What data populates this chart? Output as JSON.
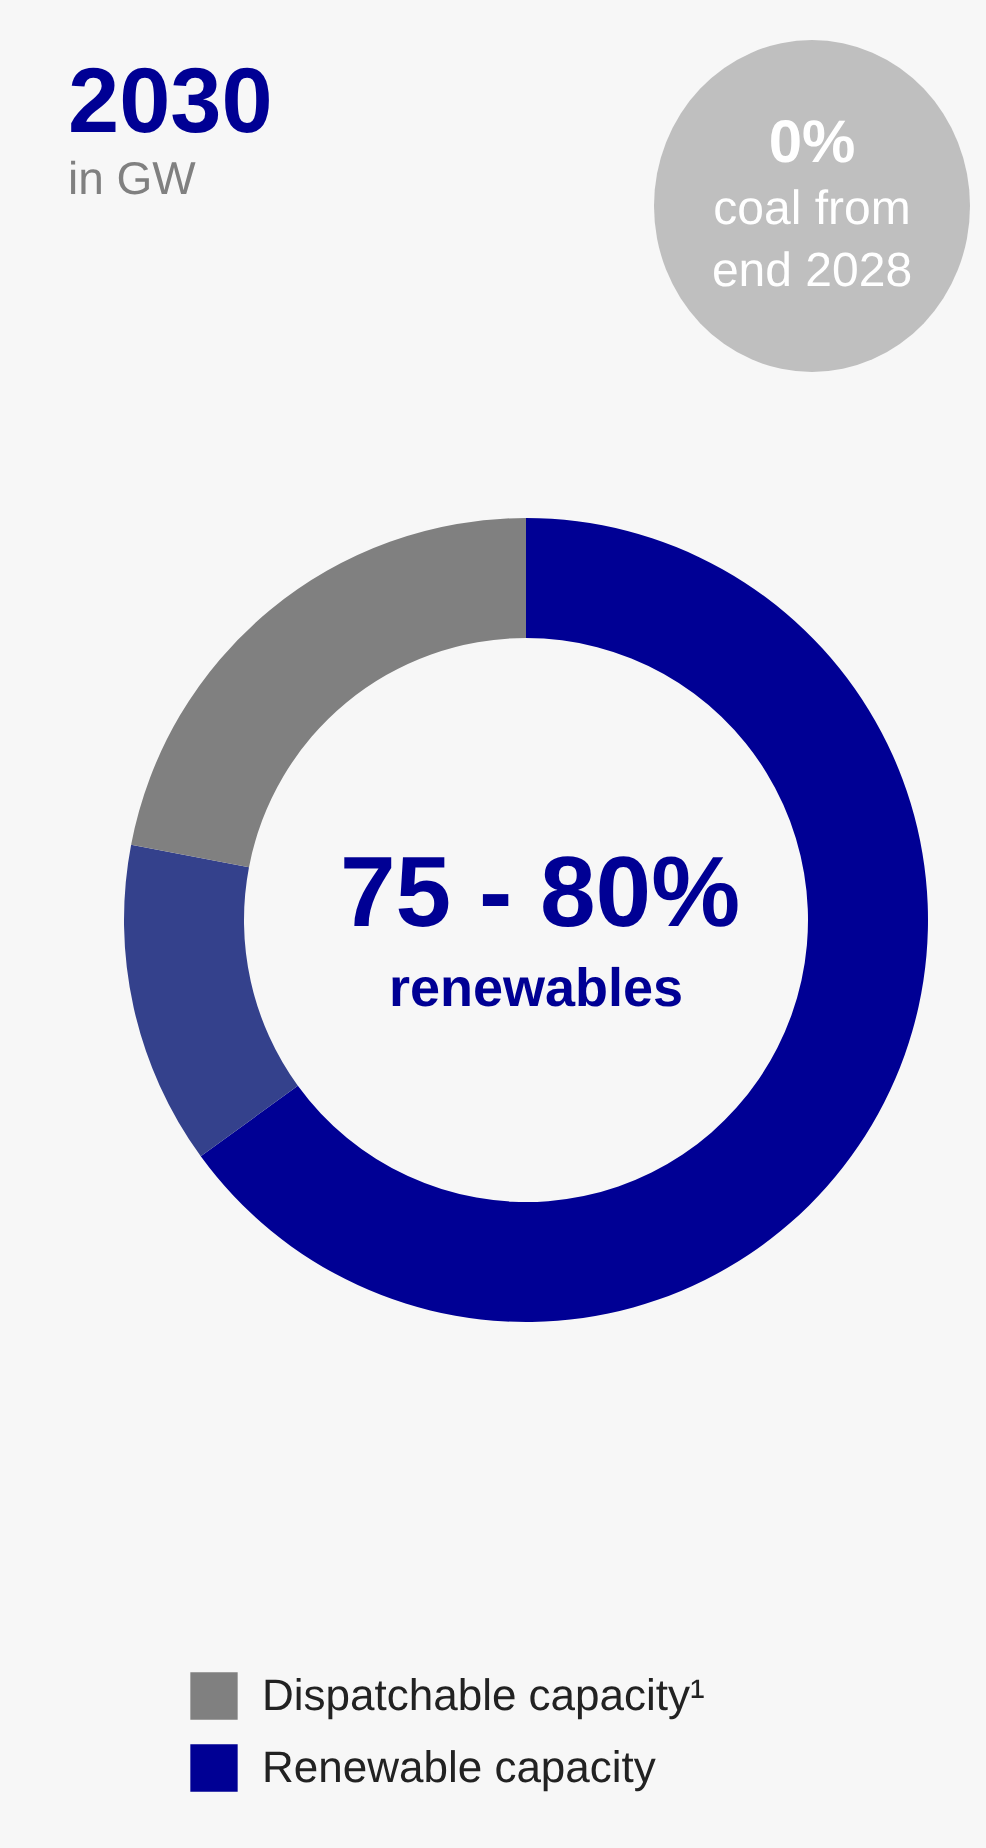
{
  "chart_data": {
    "type": "donut",
    "title": "2030",
    "subtitle": "in GW",
    "categories": [
      "Renewable capacity",
      null,
      "Dispatchable capacity¹"
    ],
    "values": [
      65,
      13,
      22
    ],
    "colors": [
      "#000094",
      "#34418c",
      "#808080"
    ],
    "legend": "bottom",
    "annotations": [
      "0%",
      "coal from",
      "end 2028",
      "75 - 80%",
      "renewables"
    ]
  }
}
